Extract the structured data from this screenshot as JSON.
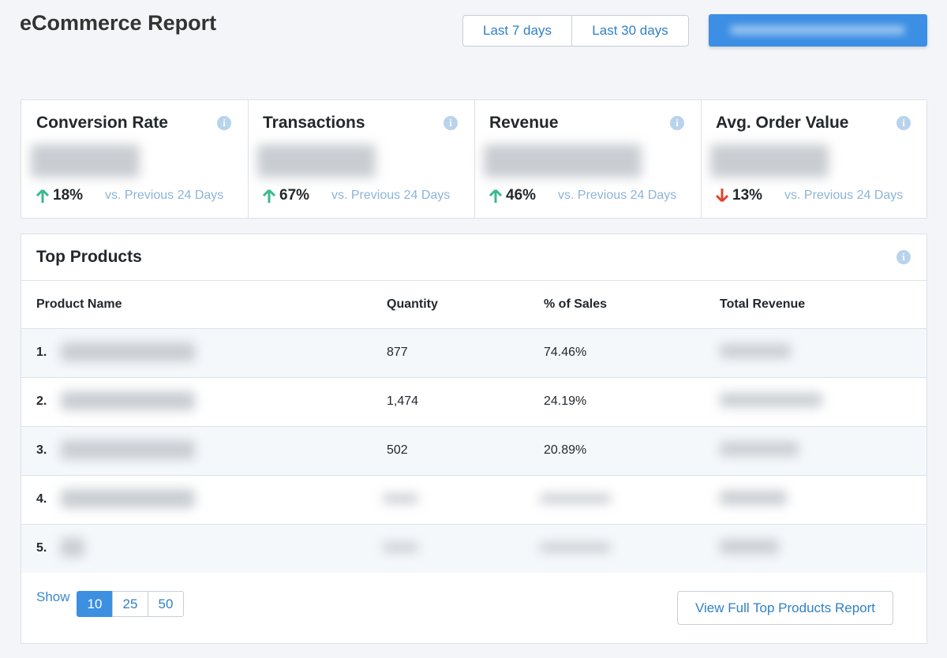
{
  "header": {
    "title": "eCommerce Report",
    "ranges": [
      "Last 7 days",
      "Last 30 days"
    ]
  },
  "metrics": [
    {
      "title": "Conversion Rate",
      "change": "18%",
      "trend": "up",
      "comparison": "vs. Previous 24 Days"
    },
    {
      "title": "Transactions",
      "change": "67%",
      "trend": "up",
      "comparison": "vs. Previous 24 Days"
    },
    {
      "title": "Revenue",
      "change": "46%",
      "trend": "up",
      "comparison": "vs. Previous 24 Days"
    },
    {
      "title": "Avg. Order Value",
      "change": "13%",
      "trend": "down",
      "comparison": "vs. Previous 24 Days"
    }
  ],
  "table": {
    "title": "Top Products",
    "columns": [
      "Product Name",
      "Quantity",
      "% of Sales",
      "Total Revenue"
    ],
    "rows": [
      [
        "1.",
        "877",
        "74.46%"
      ],
      [
        "2.",
        "1,474",
        "24.19%"
      ],
      [
        "3.",
        "502",
        "20.89%"
      ],
      [
        "4.",
        null,
        null
      ],
      [
        "5.",
        null,
        null
      ]
    ]
  },
  "footer": {
    "show_label": "Show",
    "page_sizes": [
      "10",
      "25",
      "50"
    ],
    "selected": 0,
    "report_button": "View Full Top Products Report"
  }
}
